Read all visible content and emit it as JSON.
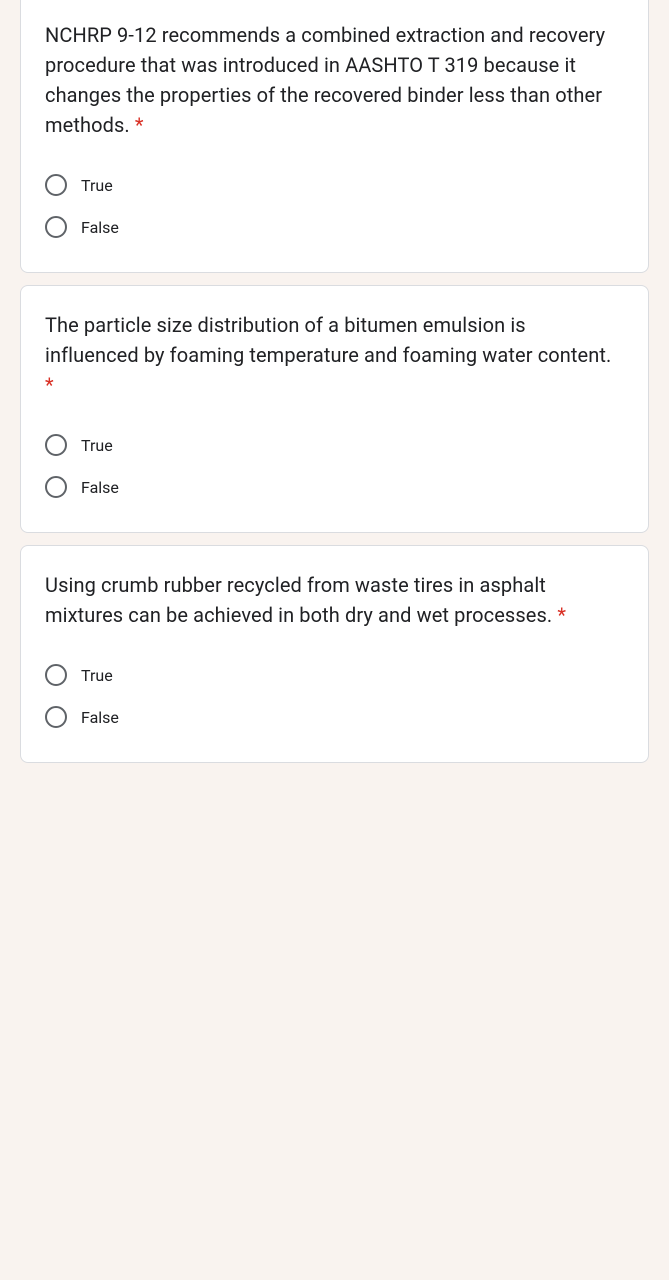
{
  "questions": [
    {
      "text": "NCHRP 9-12 recommends a combined extraction and recovery procedure that was introduced in AASHTO T 319 because it changes the properties of the recovered binder less than other methods.",
      "required_mark": "*",
      "options": [
        {
          "label": "True"
        },
        {
          "label": "False"
        }
      ]
    },
    {
      "text": "The particle size distribution of a bitumen emulsion is influenced by foaming temperature and foaming water content.",
      "required_mark": "*",
      "options": [
        {
          "label": "True"
        },
        {
          "label": "False"
        }
      ]
    },
    {
      "text": "Using crumb rubber recycled from waste tires in asphalt mixtures can be achieved in both dry and wet processes.",
      "required_mark": "*",
      "options": [
        {
          "label": "True"
        },
        {
          "label": "False"
        }
      ]
    }
  ],
  "colors": {
    "background": "#f9f3ef",
    "card_bg": "#ffffff",
    "card_border": "#dadce0",
    "text": "#202124",
    "radio_border": "#5f6368",
    "required": "#d93025"
  }
}
